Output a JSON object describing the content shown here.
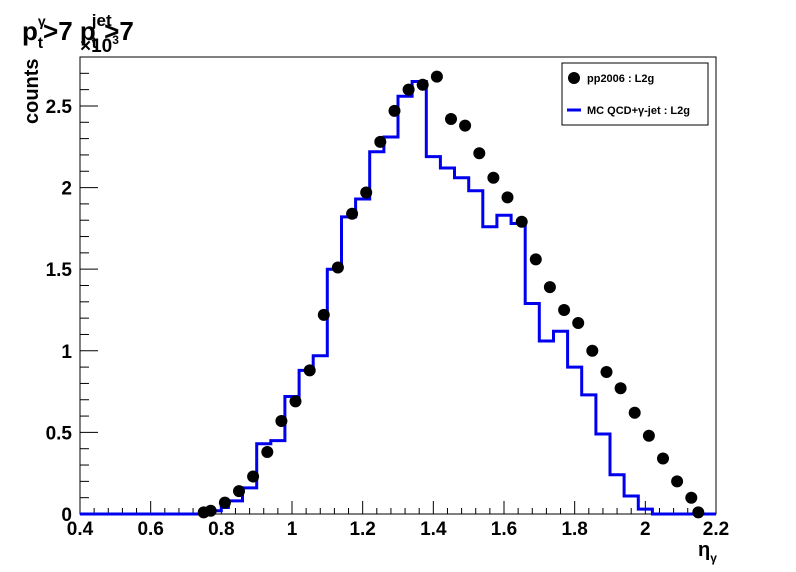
{
  "title": {
    "part1": "p",
    "sup1": "γ",
    "sub1": "t",
    "part2": ">7 p",
    "sup2": "jet",
    "sub2": "t",
    "part3": " >7"
  },
  "chart_data": {
    "type": "line",
    "xlabel": "η",
    "xlabel_sub": "γ",
    "ylabel": "counts",
    "y_exponent_label": "×10",
    "y_exponent": "3",
    "xlim": [
      0.4,
      2.2
    ],
    "ylim": [
      0,
      2.8
    ],
    "xticks": [
      0.4,
      0.6,
      0.8,
      1,
      1.2,
      1.4,
      1.6,
      1.8,
      2,
      2.2
    ],
    "yticks": [
      0,
      0.5,
      1,
      1.5,
      2,
      2.5
    ],
    "legend_position": "top-right",
    "colors": {
      "data": "#000000",
      "mc": "#0000ee"
    },
    "series": [
      {
        "name": "pp2006 : L2g",
        "style": "markers",
        "x": [
          0.75,
          0.77,
          0.81,
          0.85,
          0.89,
          0.93,
          0.97,
          1.01,
          1.05,
          1.09,
          1.13,
          1.17,
          1.21,
          1.25,
          1.29,
          1.33,
          1.37,
          1.41,
          1.45,
          1.49,
          1.53,
          1.57,
          1.61,
          1.65,
          1.69,
          1.73,
          1.77,
          1.81,
          1.85,
          1.89,
          1.93,
          1.97,
          2.01,
          2.05,
          2.09,
          2.13,
          2.15
        ],
        "y": [
          0.01,
          0.02,
          0.07,
          0.14,
          0.23,
          0.38,
          0.57,
          0.69,
          0.88,
          1.22,
          1.51,
          1.84,
          1.97,
          2.28,
          2.47,
          2.6,
          2.63,
          2.68,
          2.42,
          2.38,
          2.21,
          2.06,
          1.94,
          1.79,
          1.56,
          1.39,
          1.25,
          1.17,
          1.0,
          0.87,
          0.77,
          0.62,
          0.48,
          0.34,
          0.2,
          0.1,
          0.01
        ]
      },
      {
        "name": "MC QCD+γ-jet : L2g",
        "style": "step",
        "x": [
          0.4,
          0.74,
          0.76,
          0.78,
          0.8,
          0.82,
          0.86,
          0.9,
          0.94,
          0.98,
          1.02,
          1.06,
          1.1,
          1.14,
          1.18,
          1.22,
          1.26,
          1.3,
          1.34,
          1.38,
          1.42,
          1.46,
          1.5,
          1.54,
          1.58,
          1.62,
          1.66,
          1.7,
          1.74,
          1.78,
          1.82,
          1.86,
          1.9,
          1.94,
          1.98,
          2.02,
          2.06,
          2.1,
          2.2
        ],
        "y": [
          0,
          0,
          0.01,
          0.02,
          0.04,
          0.08,
          0.16,
          0.43,
          0.45,
          0.72,
          0.88,
          0.97,
          1.5,
          1.82,
          1.93,
          2.22,
          2.31,
          2.56,
          2.65,
          2.19,
          2.12,
          2.06,
          1.98,
          1.76,
          1.83,
          1.78,
          1.29,
          1.06,
          1.12,
          0.9,
          0.73,
          0.49,
          0.24,
          0.11,
          0.03,
          0,
          0,
          0,
          0
        ]
      }
    ]
  }
}
